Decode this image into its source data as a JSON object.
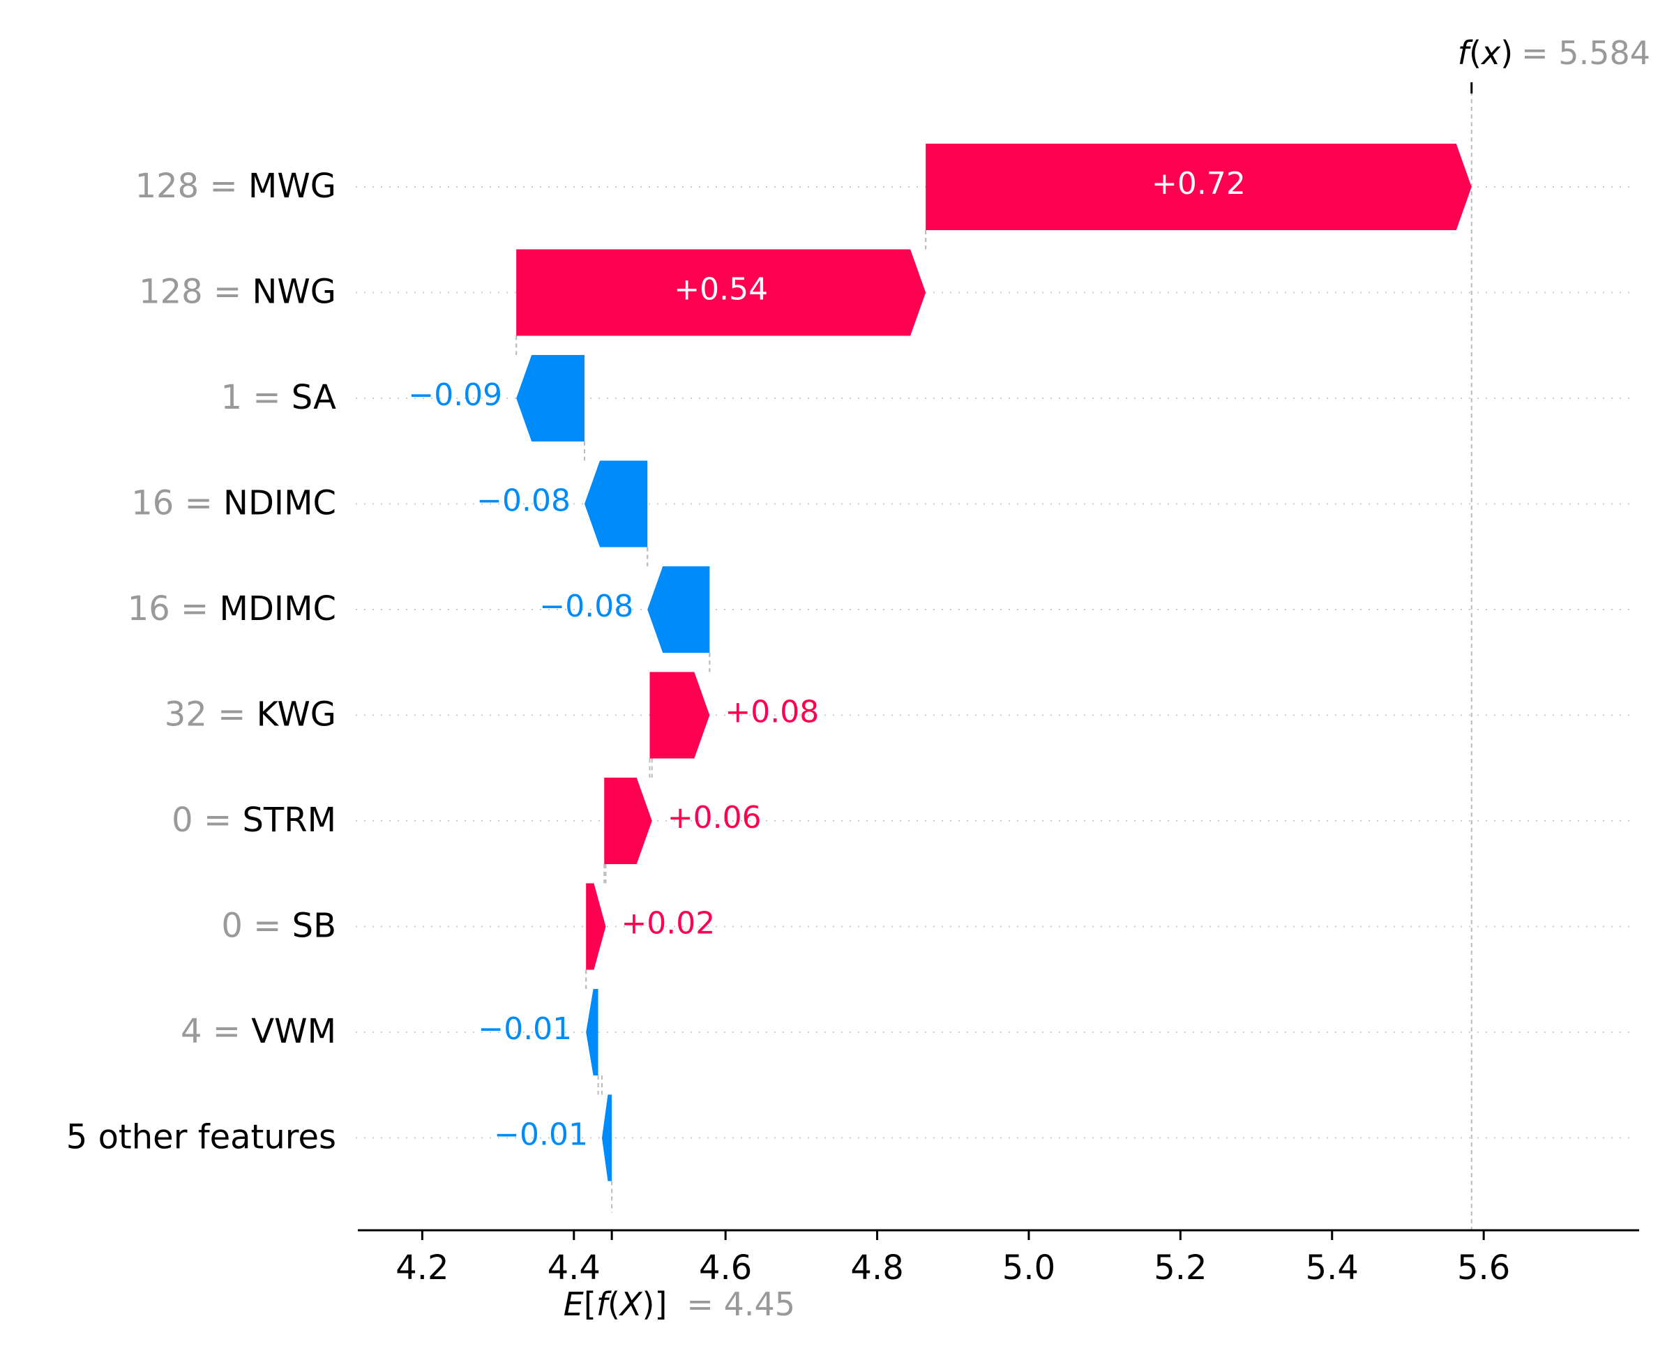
{
  "chart_data": {
    "type": "waterfall",
    "base_value": 4.45,
    "output_value": 5.584,
    "output_label": {
      "prefix": "f",
      "paren_open": "(",
      "var": "x",
      "paren_close": ")",
      "equals_value": "= 5.584"
    },
    "base_label": {
      "prefix": "E",
      "bracket_open": "[",
      "f": "f",
      "paren_open": "(",
      "var": "X",
      "paren_close": ")",
      "bracket_close": "]",
      "equals_value": "= 4.45"
    },
    "rows": [
      {
        "value": "128",
        "name": "MWG",
        "start": 4.864,
        "end": 5.584,
        "label": "+0.72"
      },
      {
        "value": "128",
        "name": "NWG",
        "start": 4.324,
        "end": 4.864,
        "label": "+0.54"
      },
      {
        "value": "1",
        "name": "SA",
        "start": 4.414,
        "end": 4.324,
        "label": "−0.09"
      },
      {
        "value": "16",
        "name": "NDIMC",
        "start": 4.497,
        "end": 4.414,
        "label": "−0.08"
      },
      {
        "value": "16",
        "name": "MDIMC",
        "start": 4.579,
        "end": 4.497,
        "label": "−0.08"
      },
      {
        "value": "32",
        "name": "KWG",
        "start": 4.5,
        "end": 4.579,
        "label": "+0.08"
      },
      {
        "value": "0",
        "name": "STRM",
        "start": 4.44,
        "end": 4.503,
        "label": "+0.06"
      },
      {
        "value": "0",
        "name": "SB",
        "start": 4.416,
        "end": 4.442,
        "label": "+0.02"
      },
      {
        "value": "4",
        "name": "VWM",
        "start": 4.432,
        "end": 4.416,
        "label": "−0.01"
      },
      {
        "value": "",
        "name": "5 other features",
        "start": 4.45,
        "end": 4.437,
        "label": "−0.01"
      }
    ],
    "xlim": [
      4.115,
      5.805
    ],
    "xticks": [
      {
        "v": 4.2,
        "label": "4.2"
      },
      {
        "v": 4.4,
        "label": "4.4"
      },
      {
        "v": 4.6,
        "label": "4.6"
      },
      {
        "v": 4.8,
        "label": "4.8"
      },
      {
        "v": 5.0,
        "label": "5.0"
      },
      {
        "v": 5.2,
        "label": "5.2"
      },
      {
        "v": 5.4,
        "label": "5.4"
      },
      {
        "v": 5.6,
        "label": "5.6"
      }
    ],
    "colors": {
      "positive": "#ff0051",
      "negative": "#008bfb",
      "label_grey": "#999999"
    }
  }
}
